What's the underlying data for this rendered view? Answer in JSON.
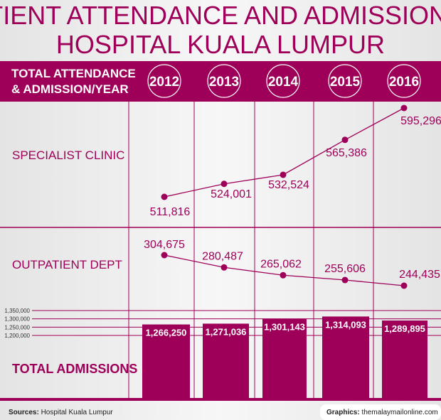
{
  "title_line1": "PATIENT ATTENDANCE AND ADMISSION AT",
  "title_line2": "HOSPITAL KUALA LUMPUR",
  "header_line1": "TOTAL ATTENDANCE",
  "header_line2": "& ADMISSION/YEAR",
  "colors": {
    "accent": "#9e0059",
    "background": "#ececec",
    "text_on_accent": "#ffffff"
  },
  "footer": {
    "sources_label": "Sources:",
    "sources": "Hospital Kuala Lumpur",
    "graphics_label": "Graphics:",
    "graphics": "themalaymailonline.com"
  },
  "chart_data": [
    {
      "type": "line",
      "title": "SPECIALIST CLINIC",
      "categories": [
        "2012",
        "2013",
        "2014",
        "2015",
        "2016"
      ],
      "labels": [
        "511,816",
        "524,001",
        "532,524",
        "565,386",
        "595,296"
      ],
      "values": [
        511816,
        524001,
        532524,
        565386,
        595296
      ]
    },
    {
      "type": "line",
      "title": "OUTPATIENT DEPT",
      "categories": [
        "2012",
        "2013",
        "2014",
        "2015",
        "2016"
      ],
      "labels": [
        "304,675",
        "280,487",
        "265,062",
        "255,606",
        "244,435"
      ],
      "values": [
        304675,
        280487,
        265062,
        255606,
        244435
      ]
    },
    {
      "type": "bar",
      "title": "TOTAL ADMISSIONS",
      "categories": [
        "2012",
        "2013",
        "2014",
        "2015",
        "2016"
      ],
      "labels": [
        "1,266,250",
        "1,271,036",
        "1,301,143",
        "1,314,093",
        "1,289,895"
      ],
      "values": [
        1266250,
        1271036,
        1301143,
        1314093,
        1289895
      ],
      "yticks": [
        "1,200,000",
        "1,250,000",
        "1,300,000",
        "1,350,000"
      ],
      "ytick_values": [
        1200000,
        1250000,
        1300000,
        1350000
      ],
      "grid": true
    }
  ]
}
